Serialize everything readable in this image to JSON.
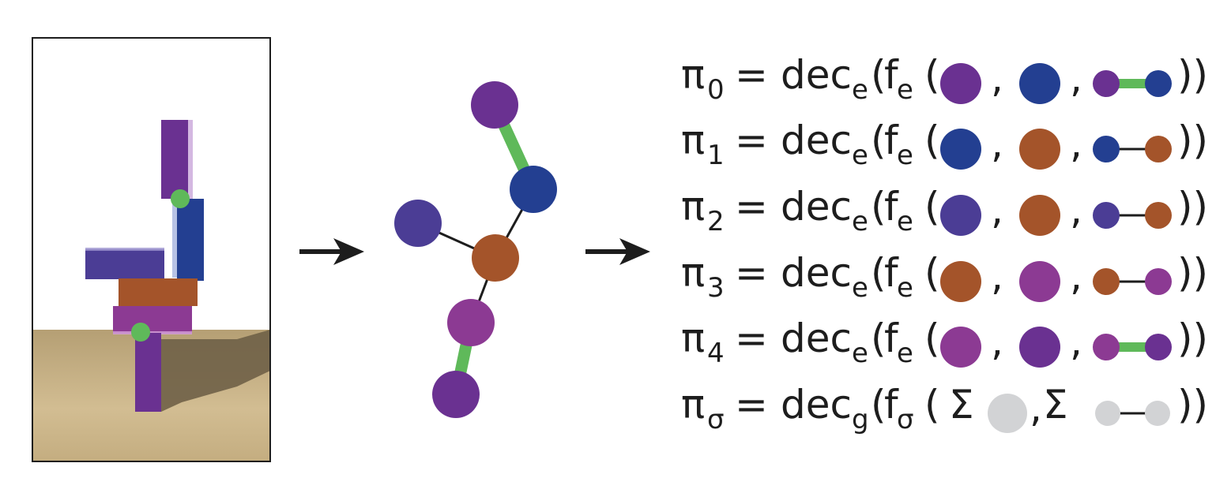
{
  "colors": {
    "purple": "#6a3191",
    "dark_blue": "#233f91",
    "violet_blue": "#4b3d95",
    "orange_brown": "#a4542a",
    "magenta": "#8c3a93",
    "green_edge": "#5fb95a",
    "gray": "#d2d3d5",
    "black_edge": "#1d1d1d",
    "ground": "#c9b48a",
    "ground_shadow": "#6d5f44"
  },
  "graph": {
    "nodes": [
      {
        "id": "n-top",
        "color": "purple"
      },
      {
        "id": "n-blue",
        "color": "dark_blue"
      },
      {
        "id": "n-left",
        "color": "violet_blue"
      },
      {
        "id": "n-center",
        "color": "orange_brown"
      },
      {
        "id": "n-magenta",
        "color": "magenta"
      },
      {
        "id": "n-bottom",
        "color": "purple"
      }
    ],
    "edges": [
      {
        "from": "n-top",
        "to": "n-blue",
        "type": "green"
      },
      {
        "from": "n-blue",
        "to": "n-center",
        "type": "black"
      },
      {
        "from": "n-left",
        "to": "n-center",
        "type": "black"
      },
      {
        "from": "n-center",
        "to": "n-magenta",
        "type": "black"
      },
      {
        "from": "n-magenta",
        "to": "n-bottom",
        "type": "green"
      }
    ]
  },
  "equations": [
    {
      "pi": "π",
      "pi_sub": "0",
      "eq": "=",
      "dec": "dec",
      "dec_sub": "e",
      "f": "f",
      "f_sub": "e",
      "open": "(",
      "sep": ",",
      "close": "))",
      "a": "purple",
      "b": "dark_blue",
      "edge_from": "purple",
      "edge_to": "dark_blue",
      "edge": "green"
    },
    {
      "pi": "π",
      "pi_sub": "1",
      "eq": "=",
      "dec": "dec",
      "dec_sub": "e",
      "f": "f",
      "f_sub": "e",
      "open": "(",
      "sep": ",",
      "close": "))",
      "a": "dark_blue",
      "b": "orange_brown",
      "edge_from": "dark_blue",
      "edge_to": "orange_brown",
      "edge": "black"
    },
    {
      "pi": "π",
      "pi_sub": "2",
      "eq": "=",
      "dec": "dec",
      "dec_sub": "e",
      "f": "f",
      "f_sub": "e",
      "open": "(",
      "sep": ",",
      "close": "))",
      "a": "violet_blue",
      "b": "orange_brown",
      "edge_from": "violet_blue",
      "edge_to": "orange_brown",
      "edge": "black"
    },
    {
      "pi": "π",
      "pi_sub": "3",
      "eq": "=",
      "dec": "dec",
      "dec_sub": "e",
      "f": "f",
      "f_sub": "e",
      "open": "(",
      "sep": ",",
      "close": "))",
      "a": "orange_brown",
      "b": "magenta",
      "edge_from": "orange_brown",
      "edge_to": "magenta",
      "edge": "black"
    },
    {
      "pi": "π",
      "pi_sub": "4",
      "eq": "=",
      "dec": "dec",
      "dec_sub": "e",
      "f": "f",
      "f_sub": "e",
      "open": "(",
      "sep": ",",
      "close": "))",
      "a": "magenta",
      "b": "purple",
      "edge_from": "magenta",
      "edge_to": "purple",
      "edge": "green"
    },
    {
      "pi": "π",
      "pi_sub": "σ",
      "eq": "=",
      "dec": "dec",
      "dec_sub": "g",
      "f": "f",
      "f_sub": "σ",
      "open": "(",
      "sep": ",",
      "close": "))",
      "sum": "Σ",
      "a": "gray",
      "b": null,
      "edge_from": "gray",
      "edge_to": "gray",
      "edge": "black"
    }
  ]
}
